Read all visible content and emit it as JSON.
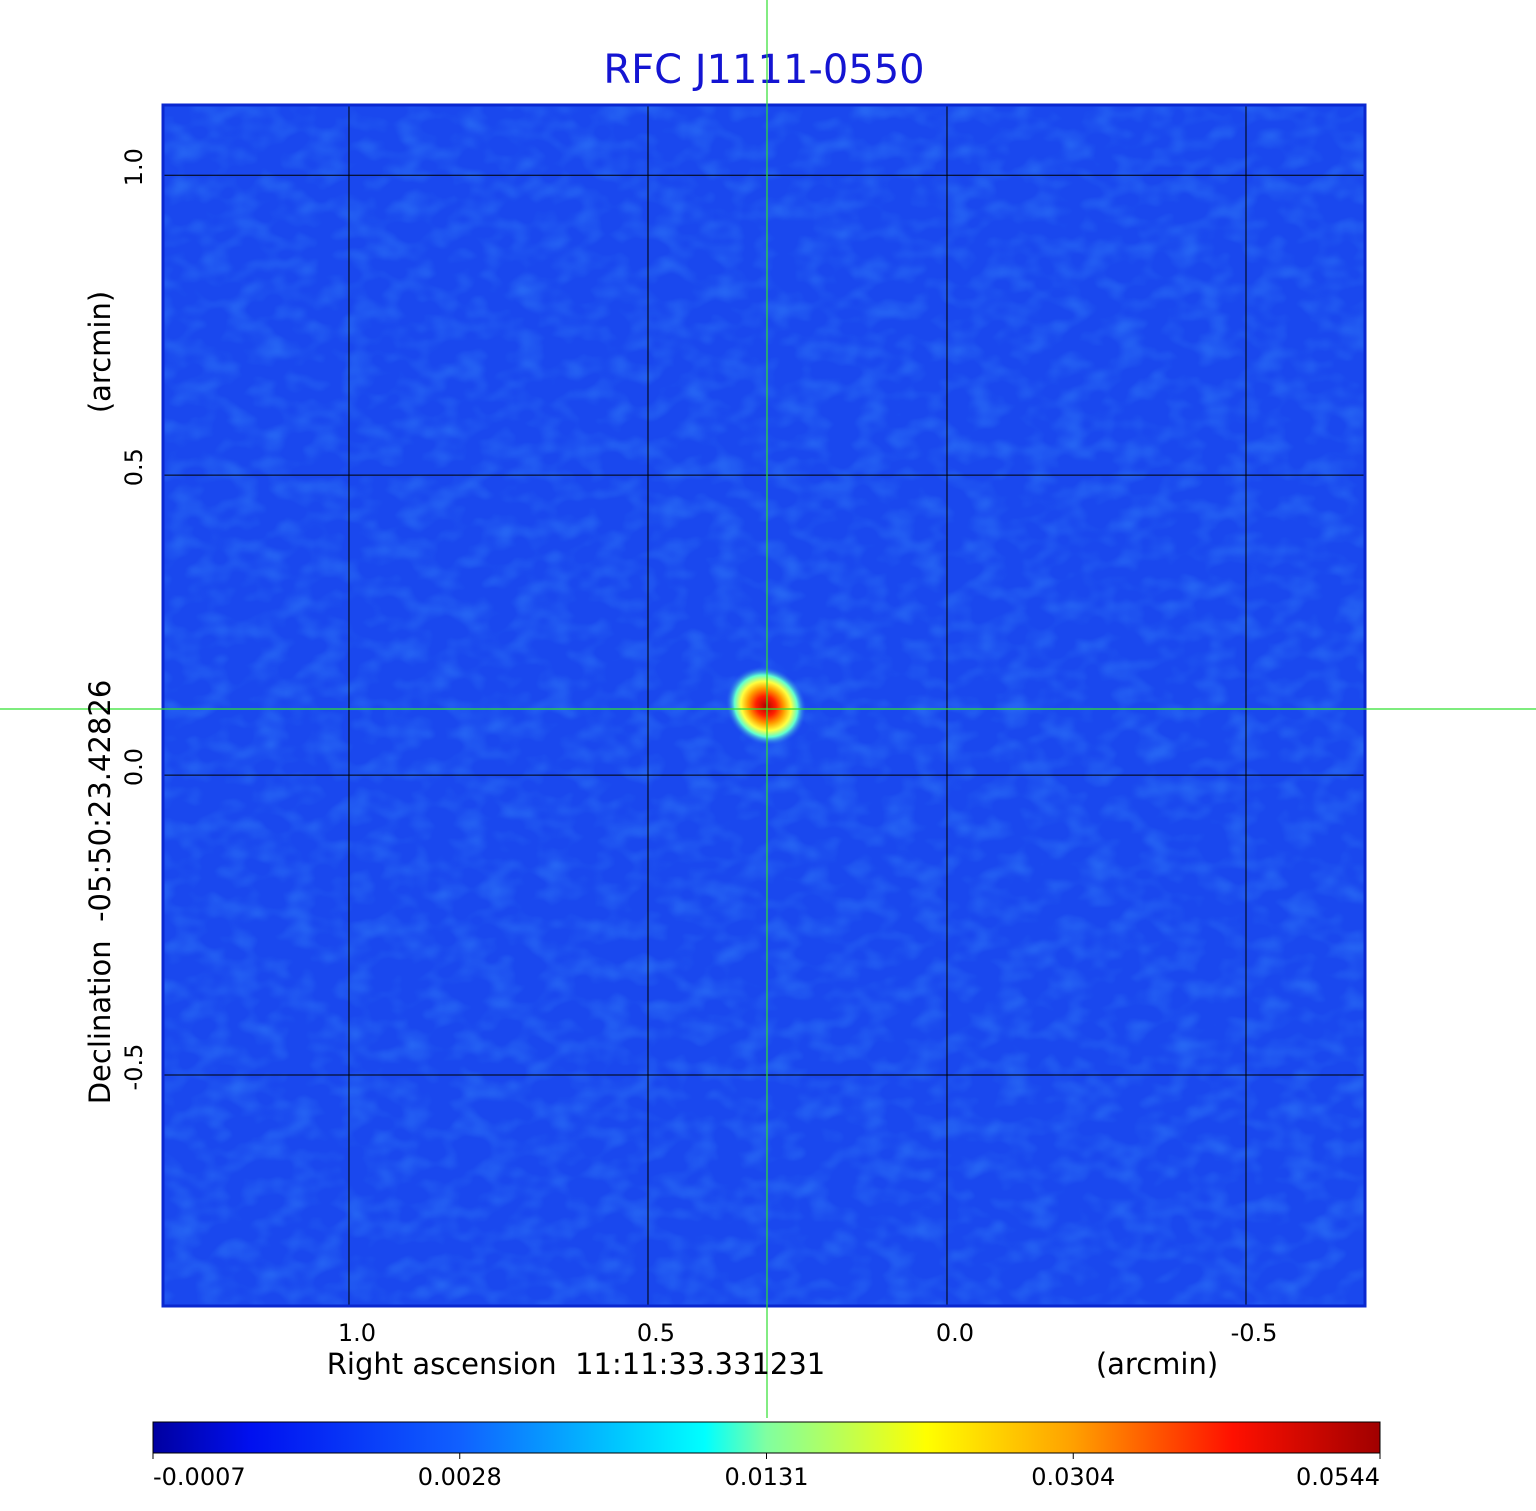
{
  "chart_data": {
    "type": "image",
    "title": "RFC J1111-0550",
    "x_label": "Right ascension  11:11:33.331231",
    "x_unit": "(arcmin)",
    "y_label": "Declination  -05:50:23.42826",
    "y_unit": "(arcmin)",
    "xlim": [
      1.311,
      -0.699
    ],
    "ylim": [
      -0.885,
      1.117
    ],
    "xticks": [
      {
        "value": 1,
        "label": "1.0"
      },
      0.5,
      {
        "value": 0,
        "label": "0.0"
      },
      -0.5
    ],
    "yticks": [
      -0.5,
      {
        "value": 0,
        "label": "0.0"
      },
      0.5,
      {
        "value": 1,
        "label": "1.0"
      }
    ],
    "grid": true,
    "colormap": "jet",
    "colorbar_ticks": [
      -0.0007,
      0.0028,
      0.0131,
      0.0304,
      0.0544
    ]
  }
}
